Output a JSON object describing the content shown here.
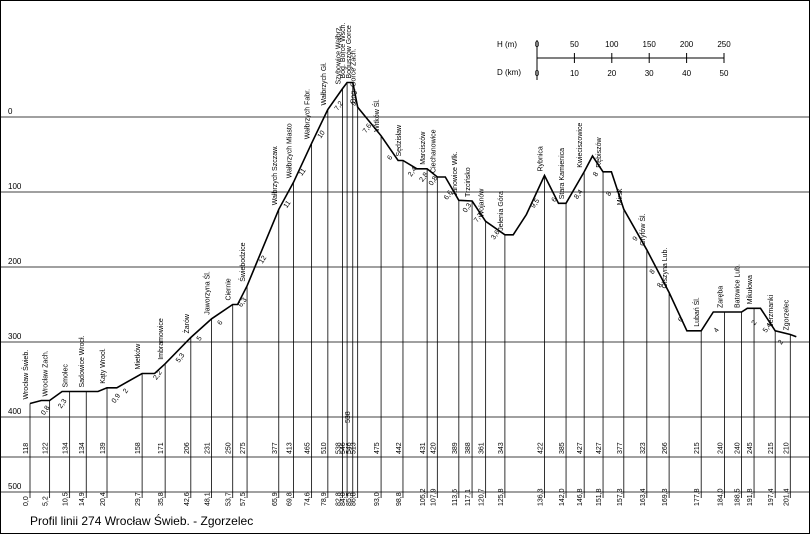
{
  "caption": "Profil linii 274 Wrocław Świeb. - Zgorzelec",
  "scale_h_label": "H  (m)",
  "scale_d_label": "D (km)",
  "scale_h_ticks": [
    "0",
    "50",
    "100",
    "150",
    "200",
    "250"
  ],
  "scale_d_ticks": [
    "0",
    "10",
    "20",
    "30",
    "40",
    "50"
  ],
  "y_ticks": [
    "500",
    "400",
    "300",
    "200",
    "100",
    "0"
  ],
  "chart_data": {
    "type": "line",
    "title": "Profil linii 274 Wrocław Świeb. - Zgorzelec",
    "ylim": [
      0,
      550
    ],
    "xlim": [
      0,
      203
    ],
    "y_ticks": [
      0,
      100,
      200,
      300,
      400,
      500
    ],
    "stations": [
      {
        "name": "Wrocław Świeb.",
        "km": 0.0,
        "km_label": "0,0",
        "h": 118
      },
      {
        "name": "Wrocław Zach.",
        "km": 5.2,
        "km_label": "5,2",
        "h": 122
      },
      {
        "name": "Smolec",
        "km": 10.5,
        "km_label": "10,5",
        "h": 134
      },
      {
        "name": "Sadowice Wrocł.",
        "km": 14.9,
        "km_label": "14,9",
        "h": 134
      },
      {
        "name": "Kąty Wrocł.",
        "km": 20.4,
        "km_label": "20,4",
        "h": 139
      },
      {
        "name": "Mietków",
        "km": 29.7,
        "km_label": "29,7",
        "h": 158
      },
      {
        "name": "Imbramowice",
        "km": 35.8,
        "km_label": "35,8",
        "h": 171
      },
      {
        "name": "Żarów",
        "km": 42.6,
        "km_label": "42,6",
        "h": 206
      },
      {
        "name": "Jaworzyna Śl.",
        "km": 48.1,
        "km_label": "48,1",
        "h": 231
      },
      {
        "name": "Ciernie",
        "km": 53.7,
        "km_label": "53,7",
        "h": 250
      },
      {
        "name": "Świebodzice",
        "km": 57.5,
        "km_label": "57,5",
        "h": 275
      },
      {
        "name": "Wałbrzych Szczaw.",
        "km": 65.9,
        "km_label": "65,9",
        "h": 377
      },
      {
        "name": "Wałbrzych Miasto",
        "km": 69.8,
        "km_label": "69,8",
        "h": 413
      },
      {
        "name": "Wałbrzych Fabr.",
        "km": 74.6,
        "km_label": "74,6",
        "h": 465
      },
      {
        "name": "Wałbrzych Gł.",
        "km": 78.9,
        "km_label": "78,9",
        "h": 510
      },
      {
        "name": "Szybowice Wałbrz.",
        "km": 82.8,
        "km_label": "82,8",
        "h": 538
      },
      {
        "name": "Bog. Borce Wsch.",
        "km": 84.0,
        "km_label": "84,0",
        "h": 546
      },
      {
        "name": "Boguszów Gorce",
        "km": 85.5,
        "km_label": "85,5",
        "h": 546
      },
      {
        "name": "Bog. Gorce Zach.",
        "km": 86.8,
        "km_label": "86,8",
        "h": 513
      },
      {
        "name": "Witków Śl.",
        "km": 93.0,
        "km_label": "93,0",
        "h": 475
      },
      {
        "name": "Sędzisław",
        "km": 98.8,
        "km_label": "98,8",
        "h": 442
      },
      {
        "name": "Marciszów",
        "km": 105.2,
        "km_label": "105,2",
        "h": 431
      },
      {
        "name": "Ciechanowice",
        "km": 107.9,
        "km_label": "107,9",
        "h": 420
      },
      {
        "name": "Janowice Wlk.",
        "km": 113.6,
        "km_label": "113,6",
        "h": 389
      },
      {
        "name": "Trzcińsko",
        "km": 117.1,
        "km_label": "117,1",
        "h": 388
      },
      {
        "name": "Wojanów",
        "km": 120.7,
        "km_label": "120,7",
        "h": 361
      },
      {
        "name": "Jelenia Góra",
        "km": 125.8,
        "km_label": "125,8",
        "h": 343
      },
      {
        "name": "Rybnica",
        "km": 136.3,
        "km_label": "136,3",
        "h": 422
      },
      {
        "name": "Stara Kamienica",
        "km": 142.0,
        "km_label": "142,0",
        "h": 385
      },
      {
        "name": "Kwieciszowice",
        "km": 146.8,
        "km_label": "146,8",
        "h": 427
      },
      {
        "name": "Rębiszów",
        "km": 151.8,
        "km_label": "151,8",
        "h": 427
      },
      {
        "name": "Mirsk",
        "km": 157.3,
        "km_label": "157,3",
        "h": 377
      },
      {
        "name": "Gryfów Śl.",
        "km": 163.4,
        "km_label": "163,4",
        "h": 323
      },
      {
        "name": "Olszyna Lub.",
        "km": 169.3,
        "km_label": "169,3",
        "h": 266
      },
      {
        "name": "Lubań Śl.",
        "km": 177.8,
        "km_label": "177,8",
        "h": 215
      },
      {
        "name": "Zaręba",
        "km": 184.0,
        "km_label": "184,0",
        "h": 240
      },
      {
        "name": "Batowice Lub.",
        "km": 188.5,
        "km_label": "188,5",
        "h": 240
      },
      {
        "name": "Mikułowa",
        "km": 191.8,
        "km_label": "191,8",
        "h": 245
      },
      {
        "name": "Jerzmanki",
        "km": 197.4,
        "km_label": "197,4",
        "h": 215
      },
      {
        "name": "Zgorzelec",
        "km": 201.4,
        "km_label": "201,4",
        "h": 210
      }
    ],
    "extra_points": [
      {
        "km": 3.0,
        "h": 122
      },
      {
        "km": 8.5,
        "h": 134
      },
      {
        "km": 18.0,
        "h": 134
      },
      {
        "km": 23.0,
        "h": 139
      },
      {
        "km": 33.0,
        "h": 158
      },
      {
        "km": 55.0,
        "h": 250
      },
      {
        "km": 97.5,
        "h": 442
      },
      {
        "km": 102.5,
        "h": 431
      },
      {
        "km": 110.0,
        "h": 420
      },
      {
        "km": 128.0,
        "h": 343
      },
      {
        "km": 131.5,
        "h": 370
      },
      {
        "km": 140.0,
        "h": 385
      },
      {
        "km": 149.0,
        "h": 448
      },
      {
        "km": 154.0,
        "h": 427
      },
      {
        "km": 174.0,
        "h": 215
      },
      {
        "km": 181.0,
        "h": 240
      },
      {
        "km": 190.0,
        "h": 245
      },
      {
        "km": 193.5,
        "h": 245
      },
      {
        "km": 203.0,
        "h": 207
      }
    ],
    "gradients": [
      {
        "label": "0,8",
        "km": 3.8,
        "h": 118
      },
      {
        "label": "2,3",
        "km": 8.3,
        "h": 127
      },
      {
        "label": "0,9",
        "km": 22.5,
        "h": 134
      },
      {
        "label": "2",
        "km": 25.5,
        "h": 147
      },
      {
        "label": "2,2",
        "km": 33.5,
        "h": 165
      },
      {
        "label": "5,3",
        "km": 39.5,
        "h": 188
      },
      {
        "label": "5",
        "km": 45.0,
        "h": 217
      },
      {
        "label": "6",
        "km": 50.5,
        "h": 238
      },
      {
        "label": "6,3",
        "km": 56.0,
        "h": 262
      },
      {
        "label": "12",
        "km": 61.5,
        "h": 320
      },
      {
        "label": "11",
        "km": 68.0,
        "h": 394
      },
      {
        "label": "11",
        "km": 72.0,
        "h": 437
      },
      {
        "label": "10",
        "km": 77.0,
        "h": 487
      },
      {
        "label": "7,2",
        "km": 81.5,
        "h": 524
      },
      {
        "label": "9",
        "km": 86.0,
        "h": 530
      },
      {
        "label": "7,6",
        "km": 89.0,
        "h": 494
      },
      {
        "label": "6",
        "km": 95.5,
        "h": 458
      },
      {
        "label": "2,4",
        "km": 101.0,
        "h": 436
      },
      {
        "label": "2,8",
        "km": 104.0,
        "h": 429
      },
      {
        "label": "0,8",
        "km": 106.5,
        "h": 424
      },
      {
        "label": "6,6",
        "km": 110.5,
        "h": 405
      },
      {
        "label": "0,3",
        "km": 115.5,
        "h": 388
      },
      {
        "label": "7,7",
        "km": 118.5,
        "h": 375
      },
      {
        "label": "3,6",
        "km": 123.0,
        "h": 352
      },
      {
        "label": "9,5",
        "km": 133.5,
        "h": 394
      },
      {
        "label": "6",
        "km": 139.0,
        "h": 402
      },
      {
        "label": "8,4",
        "km": 145.0,
        "h": 406
      },
      {
        "label": "8",
        "km": 150.0,
        "h": 436
      },
      {
        "label": "8",
        "km": 153.5,
        "h": 410
      },
      {
        "label": "9",
        "km": 160.5,
        "h": 350
      },
      {
        "label": "8",
        "km": 165.0,
        "h": 306
      },
      {
        "label": "8",
        "km": 167.0,
        "h": 288
      },
      {
        "label": "6",
        "km": 172.5,
        "h": 242
      },
      {
        "label": "4",
        "km": 182.0,
        "h": 228
      },
      {
        "label": "2",
        "km": 192.0,
        "h": 238
      },
      {
        "label": "5,4",
        "km": 195.0,
        "h": 228
      },
      {
        "label": "2",
        "km": 199.0,
        "h": 212
      }
    ],
    "bottom_label_538": "538"
  }
}
